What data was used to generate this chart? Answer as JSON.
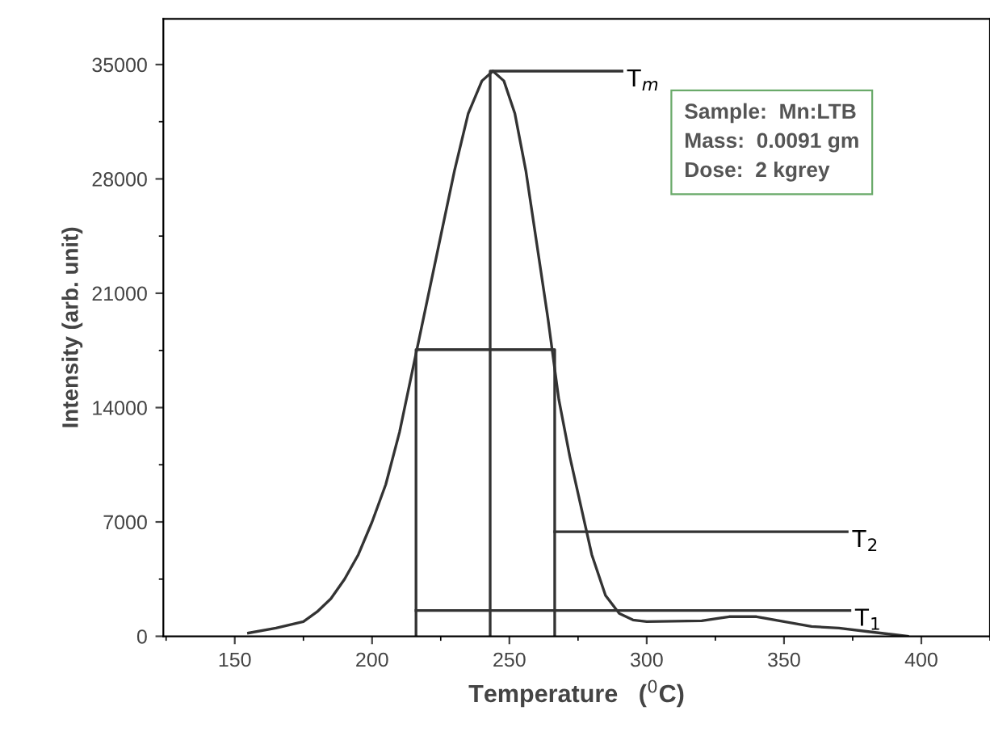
{
  "chart_data": {
    "type": "line",
    "xlabel": "Temperature   ($^{0}$C)",
    "ylabel": "Intensity (arb. unit)",
    "xlim": [
      124,
      425
    ],
    "ylim": [
      0,
      37800
    ],
    "xticks": [
      150,
      200,
      250,
      300,
      350,
      400
    ],
    "yticks": [
      0,
      7000,
      14000,
      21000,
      28000,
      35000
    ],
    "grid": false,
    "legend": false,
    "marker": "none",
    "line_style": "solid",
    "series": [
      {
        "color": "#333333",
        "x": [
          155,
          165,
          175,
          180,
          185,
          190,
          195,
          200,
          205,
          210,
          215,
          220,
          225,
          230,
          235,
          240,
          244,
          248,
          252,
          256,
          260,
          264,
          268,
          272,
          276,
          280,
          285,
          290,
          295,
          300,
          320,
          330,
          340,
          350,
          360,
          370,
          380,
          390,
          395
        ],
        "values": [
          200,
          500,
          900,
          1500,
          2300,
          3500,
          5000,
          7000,
          9300,
          12500,
          16500,
          20500,
          24500,
          28500,
          32000,
          34000,
          34600,
          34000,
          32000,
          28500,
          24000,
          19500,
          14500,
          11000,
          8000,
          5000,
          2500,
          1400,
          1000,
          900,
          950,
          1200,
          1200,
          900,
          600,
          500,
          300,
          100,
          0
        ]
      },
      {
        "color": "#333333",
        "x": [
          243,
          243,
          291
        ],
        "values": [
          0,
          34600,
          34600
        ]
      },
      {
        "color": "#333333",
        "x": [
          216,
          216,
          266.5,
          266.5
        ],
        "values": [
          0,
          17550,
          17550,
          0
        ]
      },
      {
        "color": "#333333",
        "x": [
          266.5,
          373
        ],
        "values": [
          6400,
          6400
        ]
      },
      {
        "color": "#333333",
        "x": [
          216,
          374
        ],
        "values": [
          1580,
          1580
        ]
      }
    ],
    "annotations": [
      {
        "text": "T$_{m}$",
        "x": 291,
        "y": 34600
      },
      {
        "text": "T$_{2}$",
        "x": 373,
        "y": 6400
      },
      {
        "text": "T$_{1}$",
        "x": 374,
        "y": 1580
      },
      "Sample:  Mn:LTB\nMass:  0.0091 gm\nDose:  2 kgrey"
    ]
  }
}
